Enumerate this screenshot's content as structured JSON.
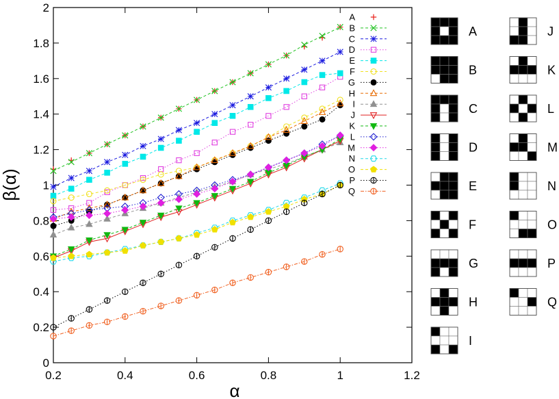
{
  "chart_data": {
    "type": "scatter",
    "xlabel": "α",
    "ylabel": "β(α)",
    "xlim": [
      0.2,
      1.2
    ],
    "ylim": [
      0,
      2
    ],
    "x_ticks": [
      "0.2",
      "0.4",
      "0.6",
      "0.8",
      "1",
      "1.2"
    ],
    "y_ticks": [
      "0",
      "0.2",
      "0.4",
      "0.6",
      "0.8",
      "1",
      "1.2",
      "1.4",
      "1.6",
      "1.8",
      "2"
    ],
    "grid": false,
    "legend_position": "top-right",
    "x": [
      0.2,
      0.25,
      0.3,
      0.35,
      0.4,
      0.45,
      0.5,
      0.55,
      0.6,
      0.65,
      0.7,
      0.75,
      0.8,
      0.85,
      0.9,
      0.95,
      1.0
    ],
    "series": [
      {
        "name": "A",
        "color": "#e8201a",
        "marker": "plus",
        "line": "none",
        "values": [
          1.09,
          1.14,
          1.18,
          1.23,
          1.28,
          1.33,
          1.38,
          1.43,
          1.48,
          1.53,
          1.58,
          1.63,
          1.68,
          1.73,
          1.78,
          1.83,
          1.89
        ]
      },
      {
        "name": "B",
        "color": "#22c222",
        "marker": "cross",
        "line": "dashed",
        "values": [
          1.08,
          1.13,
          1.18,
          1.23,
          1.28,
          1.33,
          1.38,
          1.43,
          1.48,
          1.53,
          1.58,
          1.63,
          1.68,
          1.73,
          1.79,
          1.84,
          1.89
        ]
      },
      {
        "name": "C",
        "color": "#1a1adf",
        "marker": "star",
        "line": "dashed",
        "values": [
          0.99,
          1.04,
          1.08,
          1.13,
          1.17,
          1.22,
          1.26,
          1.31,
          1.35,
          1.4,
          1.45,
          1.5,
          1.55,
          1.6,
          1.65,
          1.7,
          1.75
        ]
      },
      {
        "name": "D",
        "color": "#e040e0",
        "marker": "square-open",
        "line": "dotted",
        "values": [
          0.86,
          0.87,
          0.9,
          0.96,
          1.0,
          1.04,
          1.09,
          1.14,
          1.18,
          1.24,
          1.3,
          1.34,
          1.39,
          1.44,
          1.5,
          1.55,
          1.61
        ]
      },
      {
        "name": "E",
        "color": "#00e8e8",
        "marker": "square-filled",
        "line": "dashed",
        "values": [
          0.94,
          0.98,
          1.03,
          1.07,
          1.12,
          1.16,
          1.21,
          1.25,
          1.3,
          1.35,
          1.39,
          1.44,
          1.49,
          1.53,
          1.58,
          1.62,
          1.63
        ]
      },
      {
        "name": "F",
        "color": "#f0e020",
        "marker": "circle-open",
        "line": "dashed",
        "values": [
          0.91,
          0.93,
          0.95,
          0.97,
          1.0,
          1.03,
          1.06,
          1.08,
          1.1,
          1.14,
          1.18,
          1.22,
          1.27,
          1.33,
          1.38,
          1.43,
          1.48
        ]
      },
      {
        "name": "G",
        "color": "#000000",
        "marker": "circle-filled",
        "line": "dotted",
        "values": [
          0.77,
          0.8,
          0.85,
          0.89,
          0.93,
          0.97,
          1.01,
          1.05,
          1.09,
          1.13,
          1.17,
          1.21,
          1.25,
          1.29,
          1.33,
          1.37,
          1.45
        ]
      },
      {
        "name": "H",
        "color": "#e86a00",
        "marker": "triangle-open",
        "line": "dashed",
        "values": [
          0.81,
          0.85,
          0.87,
          0.89,
          0.93,
          0.97,
          1.01,
          1.05,
          1.1,
          1.14,
          1.18,
          1.22,
          1.27,
          1.31,
          1.36,
          1.41,
          1.46
        ]
      },
      {
        "name": "I",
        "color": "#909090",
        "marker": "triangle-filled",
        "line": "dashed",
        "values": [
          0.72,
          0.76,
          0.78,
          0.81,
          0.84,
          0.87,
          0.9,
          0.93,
          0.96,
          0.99,
          1.02,
          1.06,
          1.09,
          1.12,
          1.16,
          1.2,
          1.24
        ]
      },
      {
        "name": "J",
        "color": "#e02020",
        "marker": "triangle-down-open",
        "line": "solid",
        "values": [
          0.59,
          0.63,
          0.68,
          0.7,
          0.74,
          0.78,
          0.82,
          0.85,
          0.89,
          0.93,
          0.97,
          1.01,
          1.06,
          1.1,
          1.15,
          1.2,
          1.25
        ]
      },
      {
        "name": "K",
        "color": "#10b810",
        "marker": "triangle-down-filled",
        "line": "dashed",
        "values": [
          0.6,
          0.64,
          0.69,
          0.72,
          0.75,
          0.79,
          0.83,
          0.87,
          0.9,
          0.94,
          0.98,
          1.02,
          1.07,
          1.11,
          1.16,
          1.2,
          1.26
        ]
      },
      {
        "name": "L",
        "color": "#1a1ad0",
        "marker": "diamond-open",
        "line": "dotted",
        "values": [
          0.82,
          0.84,
          0.86,
          0.87,
          0.88,
          0.9,
          0.93,
          0.95,
          0.97,
          1.0,
          1.03,
          1.06,
          1.1,
          1.14,
          1.18,
          1.23,
          1.28
        ]
      },
      {
        "name": "M",
        "color": "#e020e0",
        "marker": "diamond-filled",
        "line": "dotted",
        "values": [
          0.81,
          0.82,
          0.83,
          0.84,
          0.86,
          0.88,
          0.9,
          0.92,
          0.95,
          0.98,
          1.02,
          1.06,
          1.1,
          1.14,
          1.18,
          1.22,
          1.28
        ]
      },
      {
        "name": "N",
        "color": "#20d8e8",
        "marker": "hexagon-open",
        "line": "dashed",
        "values": [
          0.57,
          0.59,
          0.6,
          0.62,
          0.64,
          0.66,
          0.68,
          0.7,
          0.73,
          0.76,
          0.8,
          0.83,
          0.86,
          0.9,
          0.93,
          0.97,
          1.01
        ]
      },
      {
        "name": "O",
        "color": "#f0e000",
        "marker": "pentagon-filled",
        "line": "dashed",
        "values": [
          0.59,
          0.6,
          0.61,
          0.62,
          0.63,
          0.66,
          0.68,
          0.7,
          0.72,
          0.75,
          0.79,
          0.82,
          0.85,
          0.88,
          0.92,
          0.95,
          1.0
        ]
      },
      {
        "name": "P",
        "color": "#000000",
        "marker": "circle-bar-open",
        "line": "dotted",
        "values": [
          0.2,
          0.25,
          0.3,
          0.35,
          0.4,
          0.45,
          0.5,
          0.55,
          0.6,
          0.65,
          0.7,
          0.75,
          0.8,
          0.85,
          0.9,
          0.95,
          1.0
        ]
      },
      {
        "name": "Q",
        "color": "#f06020",
        "marker": "circle-bar-open",
        "line": "dashdot",
        "values": [
          0.15,
          0.18,
          0.21,
          0.23,
          0.26,
          0.29,
          0.32,
          0.35,
          0.38,
          0.41,
          0.45,
          0.48,
          0.51,
          0.54,
          0.57,
          0.61,
          0.64
        ]
      }
    ]
  },
  "patterns": [
    {
      "label": "A",
      "cells": [
        1,
        1,
        1,
        1,
        0,
        1,
        1,
        1,
        1
      ]
    },
    {
      "label": "B",
      "cells": [
        1,
        1,
        1,
        1,
        1,
        1,
        0,
        1,
        1
      ]
    },
    {
      "label": "C",
      "cells": [
        1,
        1,
        1,
        1,
        0,
        1,
        1,
        0,
        1
      ]
    },
    {
      "label": "D",
      "cells": [
        1,
        0,
        1,
        1,
        0,
        1,
        1,
        0,
        1
      ]
    },
    {
      "label": "E",
      "cells": [
        0,
        1,
        1,
        1,
        1,
        1,
        0,
        1,
        1
      ]
    },
    {
      "label": "F",
      "cells": [
        1,
        0,
        1,
        0,
        1,
        0,
        1,
        0,
        1
      ]
    },
    {
      "label": "G",
      "cells": [
        0,
        0,
        0,
        1,
        1,
        1,
        1,
        0,
        1
      ]
    },
    {
      "label": "H",
      "cells": [
        0,
        1,
        0,
        1,
        1,
        1,
        0,
        1,
        0
      ]
    },
    {
      "label": "I",
      "cells": [
        1,
        0,
        0,
        0,
        0,
        0,
        1,
        0,
        1
      ]
    },
    {
      "label": "J",
      "cells": [
        0,
        1,
        0,
        0,
        1,
        0,
        1,
        1,
        0
      ]
    },
    {
      "label": "K",
      "cells": [
        0,
        1,
        0,
        1,
        1,
        1,
        0,
        0,
        0
      ]
    },
    {
      "label": "L",
      "cells": [
        0,
        1,
        0,
        1,
        0,
        1,
        0,
        1,
        0
      ]
    },
    {
      "label": "M",
      "cells": [
        0,
        1,
        0,
        1,
        1,
        0,
        0,
        0,
        1
      ]
    },
    {
      "label": "N",
      "cells": [
        1,
        0,
        0,
        1,
        0,
        0,
        0,
        0,
        0
      ]
    },
    {
      "label": "O",
      "cells": [
        1,
        0,
        0,
        0,
        0,
        0,
        0,
        1,
        1
      ]
    },
    {
      "label": "P",
      "cells": [
        0,
        0,
        0,
        1,
        1,
        1,
        0,
        0,
        0
      ]
    },
    {
      "label": "Q",
      "cells": [
        1,
        0,
        0,
        0,
        0,
        1,
        0,
        0,
        0
      ]
    }
  ]
}
